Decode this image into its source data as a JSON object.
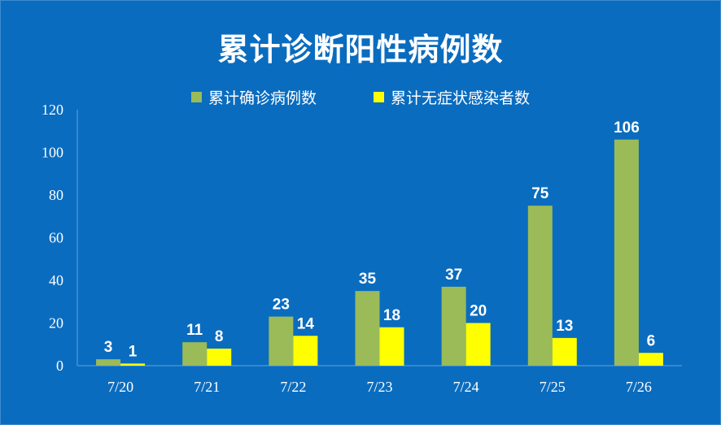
{
  "chart_data": {
    "type": "bar",
    "title": "累计诊断阳性病例数",
    "categories": [
      "7/20",
      "7/21",
      "7/22",
      "7/23",
      "7/24",
      "7/25",
      "7/26"
    ],
    "series": [
      {
        "name": "累计确诊病例数",
        "color": "#9bbb59",
        "values": [
          3,
          11,
          23,
          35,
          37,
          75,
          106
        ]
      },
      {
        "name": "累计无症状感染者数",
        "color": "#ffff00",
        "values": [
          1,
          8,
          14,
          18,
          20,
          13,
          6
        ]
      }
    ],
    "ylim": [
      0,
      120
    ],
    "yticks": [
      0,
      20,
      40,
      60,
      80,
      100,
      120
    ],
    "grid": false,
    "legend": "top",
    "data_labels": true,
    "background": "#0a6cbf"
  }
}
